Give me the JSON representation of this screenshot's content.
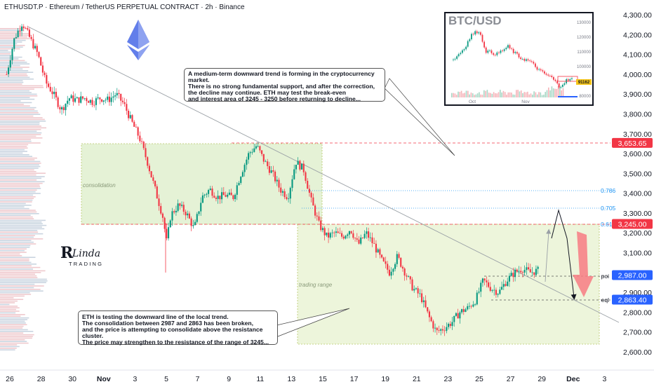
{
  "header": {
    "title": "ETHUSDT.P · Ethereum / TetherUS PERPETUAL CONTRACT · 2h · Binance"
  },
  "chart_data": {
    "type": "candlestick",
    "symbol": "ETHUSDT.P",
    "interval": "2h",
    "y_ticks": [
      2600,
      2700,
      2800,
      2900,
      3000,
      3100,
      3200,
      3300,
      3400,
      3500,
      3600,
      3700,
      3800,
      3900,
      4000,
      4100,
      4200,
      4300
    ],
    "y_tick_labels": [
      "2,600.00",
      "2,700.00",
      "2,800.00",
      "2,900.00",
      "3,000.00",
      "3,100.00",
      "3,200.00",
      "3,300.00",
      "3,400.00",
      "3,500.00",
      "3,600.00",
      "3,700.00",
      "3,800.00",
      "3,900.00",
      "4,000.00",
      "4,100.00",
      "4,200.00",
      "4,300.00"
    ],
    "ylim": [
      2560,
      4340
    ],
    "x_tick_labels": [
      "26",
      "28",
      "30",
      "Nov",
      "3",
      "5",
      "7",
      "9",
      "11",
      "13",
      "15",
      "17",
      "19",
      "21",
      "23",
      "25",
      "27",
      "29",
      "Dec",
      "3"
    ],
    "x_tick_bold": [
      "Nov",
      "Dec"
    ],
    "price_badges": [
      {
        "label": "3,653.65",
        "value": 3653.65,
        "color": "#f23645"
      },
      {
        "label": "3,245.00",
        "value": 3245.0,
        "color": "#f23645"
      },
      {
        "label": "2,987.00",
        "value": 2987.0,
        "color": "#2962ff"
      },
      {
        "label": "2,863.40",
        "value": 2863.4,
        "color": "#2962ff"
      }
    ],
    "fib_levels": [
      {
        "label": "0.786",
        "value": 3410
      },
      {
        "label": "0.705",
        "value": 3318
      },
      {
        "label": "0.618",
        "value": 3245
      }
    ],
    "level_labels": [
      {
        "label": "poi",
        "value": 2987
      },
      {
        "label": "eql",
        "value": 2863.4
      }
    ],
    "zones": [
      {
        "label": "consolidation",
        "from_day": 0,
        "to_day": 0,
        "low": 3245,
        "high": 3653
      },
      {
        "label": "trading range",
        "low": 2650,
        "high": 3245
      }
    ],
    "candle_path": [
      [
        0,
        4000
      ],
      [
        2,
        4180
      ],
      [
        4,
        4260
      ],
      [
        6,
        4180
      ],
      [
        8,
        4100
      ],
      [
        10,
        3960
      ],
      [
        12,
        3900
      ],
      [
        14,
        3820
      ],
      [
        16,
        3880
      ],
      [
        18,
        3870
      ],
      [
        20,
        3880
      ],
      [
        22,
        3860
      ],
      [
        24,
        3880
      ],
      [
        26,
        3870
      ],
      [
        28,
        3900
      ],
      [
        30,
        3850
      ],
      [
        32,
        3760
      ],
      [
        34,
        3680
      ],
      [
        36,
        3560
      ],
      [
        38,
        3420
      ],
      [
        40,
        3280
      ],
      [
        41,
        3150
      ],
      [
        42,
        3290
      ],
      [
        44,
        3340
      ],
      [
        46,
        3300
      ],
      [
        48,
        3220
      ],
      [
        50,
        3380
      ],
      [
        52,
        3420
      ],
      [
        54,
        3380
      ],
      [
        56,
        3390
      ],
      [
        58,
        3380
      ],
      [
        60,
        3500
      ],
      [
        62,
        3600
      ],
      [
        64,
        3640
      ],
      [
        66,
        3560
      ],
      [
        68,
        3500
      ],
      [
        70,
        3420
      ],
      [
        72,
        3380
      ],
      [
        74,
        3560
      ],
      [
        76,
        3520
      ],
      [
        78,
        3360
      ],
      [
        80,
        3240
      ],
      [
        82,
        3180
      ],
      [
        84,
        3200
      ],
      [
        86,
        3180
      ],
      [
        88,
        3220
      ],
      [
        90,
        3140
      ],
      [
        92,
        3200
      ],
      [
        94,
        3140
      ],
      [
        96,
        3060
      ],
      [
        98,
        3000
      ],
      [
        100,
        3080
      ],
      [
        102,
        3000
      ],
      [
        104,
        2920
      ],
      [
        106,
        2880
      ],
      [
        108,
        2780
      ],
      [
        110,
        2700
      ],
      [
        112,
        2720
      ],
      [
        114,
        2750
      ],
      [
        116,
        2800
      ],
      [
        118,
        2820
      ],
      [
        120,
        2860
      ],
      [
        122,
        2960
      ],
      [
        124,
        2920
      ],
      [
        126,
        2900
      ],
      [
        128,
        2960
      ],
      [
        130,
        3000
      ],
      [
        132,
        3020
      ],
      [
        134,
        3000
      ],
      [
        136,
        3010
      ]
    ],
    "projection_path": [
      [
        2987,
        0
      ],
      [
        3290,
        1
      ],
      [
        3180,
        2
      ],
      [
        2863,
        3
      ]
    ]
  },
  "inset": {
    "title": "BTC/USD",
    "y_tick_labels": [
      "130000",
      "120000",
      "110000",
      "100000",
      "90000",
      "80000"
    ],
    "x_tick_labels": [
      "Oct",
      "Nov"
    ],
    "last_price_label": "91162"
  },
  "callouts": {
    "top": {
      "lines": [
        "A medium-term downward trend is forming in the cryptocurrency market.",
        "There is no strong fundamental support, and after the correction,",
        "the decline may continue. ETH may test the break-even",
        "and interest area of 3245 - 3250 before returning to decline..."
      ]
    },
    "bottom": {
      "lines": [
        "ETH is testing the downward line of the local trend.",
        "The consolidation between 2987 and 2863 has been broken,",
        "and the price is attempting to consolidate above the resistance cluster.",
        "The price may strengthen to the resistance of the range of 3245..."
      ]
    }
  },
  "branding": {
    "logo_line1": "Linda",
    "logo_line2": "TRADING"
  },
  "colors": {
    "up": "#089981",
    "down": "#f23645",
    "consolidation_zone": "#d8ebc8",
    "range_zone": "#e6f3cf",
    "fib": "#2196f3",
    "eth_logo": "#627eea"
  }
}
